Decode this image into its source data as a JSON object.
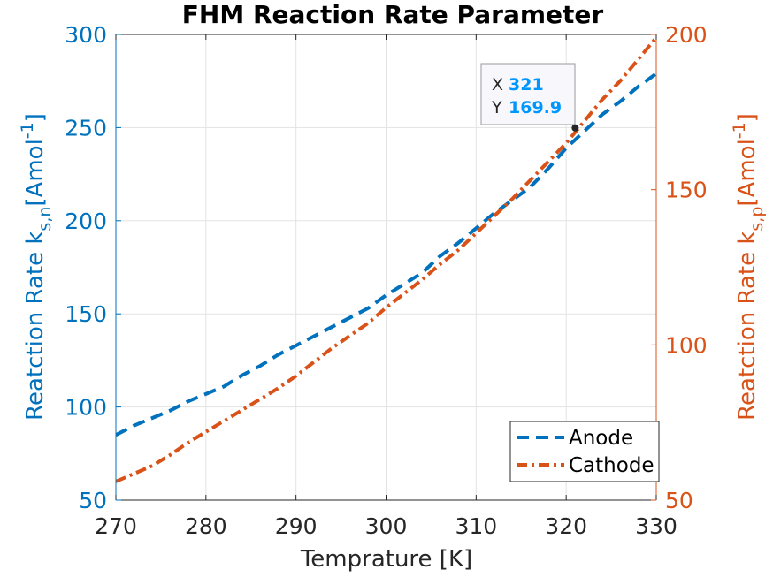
{
  "chart_data": {
    "type": "line",
    "title": "FHM Reaction Rate Parameter",
    "xlabel": "Temprature [K]",
    "ylabel_left": {
      "main": "Reatction Rate k",
      "sub": "s,n",
      "unit_open": "[Amol",
      "unit_sup": "-1",
      "unit_close": "]"
    },
    "ylabel_right": {
      "main": "Reatction Rate k",
      "sub": "s,p",
      "unit_open": "[Amol",
      "unit_sup": "-1",
      "unit_close": "]"
    },
    "xlim": [
      270,
      330
    ],
    "ylim_left": [
      50,
      300
    ],
    "ylim_right": [
      50,
      200
    ],
    "xticks": [
      "270",
      "280",
      "290",
      "300",
      "310",
      "320",
      "330"
    ],
    "yticks_left": [
      "50",
      "100",
      "150",
      "200",
      "250",
      "300"
    ],
    "yticks_right": [
      "50",
      "100",
      "150",
      "200"
    ],
    "grid": true,
    "legend_placement": "bottom-right",
    "series": [
      {
        "name": "Anode",
        "axis": "left",
        "color": "#0072BD",
        "style": "dashed",
        "x": [
          270,
          272,
          274,
          276,
          278,
          280,
          282,
          284,
          286,
          288,
          290,
          292,
          294,
          296,
          298,
          300,
          302,
          304,
          306,
          308,
          310,
          312,
          314,
          316,
          318,
          320,
          322,
          324,
          326,
          328,
          330
        ],
        "values": [
          85,
          90,
          94,
          98,
          103,
          107,
          111,
          117,
          122,
          128,
          133,
          138,
          143,
          148,
          153,
          160,
          166,
          172,
          181,
          188,
          196,
          204,
          211,
          218,
          228,
          239,
          248,
          257,
          264,
          272,
          279
        ]
      },
      {
        "name": "Cathode",
        "axis": "right",
        "color": "#D95319",
        "style": "dash-dot",
        "x": [
          270,
          272,
          274,
          276,
          278,
          280,
          282,
          284,
          286,
          288,
          290,
          292,
          294,
          296,
          298,
          300,
          302,
          304,
          306,
          308,
          310,
          312,
          314,
          316,
          318,
          320,
          322,
          324,
          326,
          328,
          330
        ],
        "values": [
          56,
          58.5,
          61,
          64.5,
          68.5,
          72,
          75.5,
          79,
          82.5,
          86,
          90,
          94.5,
          99,
          103,
          107,
          112,
          116.5,
          121,
          126,
          130.5,
          136,
          141.5,
          147,
          153,
          159,
          165,
          172,
          179,
          185,
          192,
          199
        ]
      }
    ],
    "datatip": {
      "x_label": "X",
      "x_value": "321",
      "y_label": "Y",
      "y_value": "169.9",
      "point_x": 321,
      "point_y": 169.9,
      "axis": "right"
    }
  }
}
